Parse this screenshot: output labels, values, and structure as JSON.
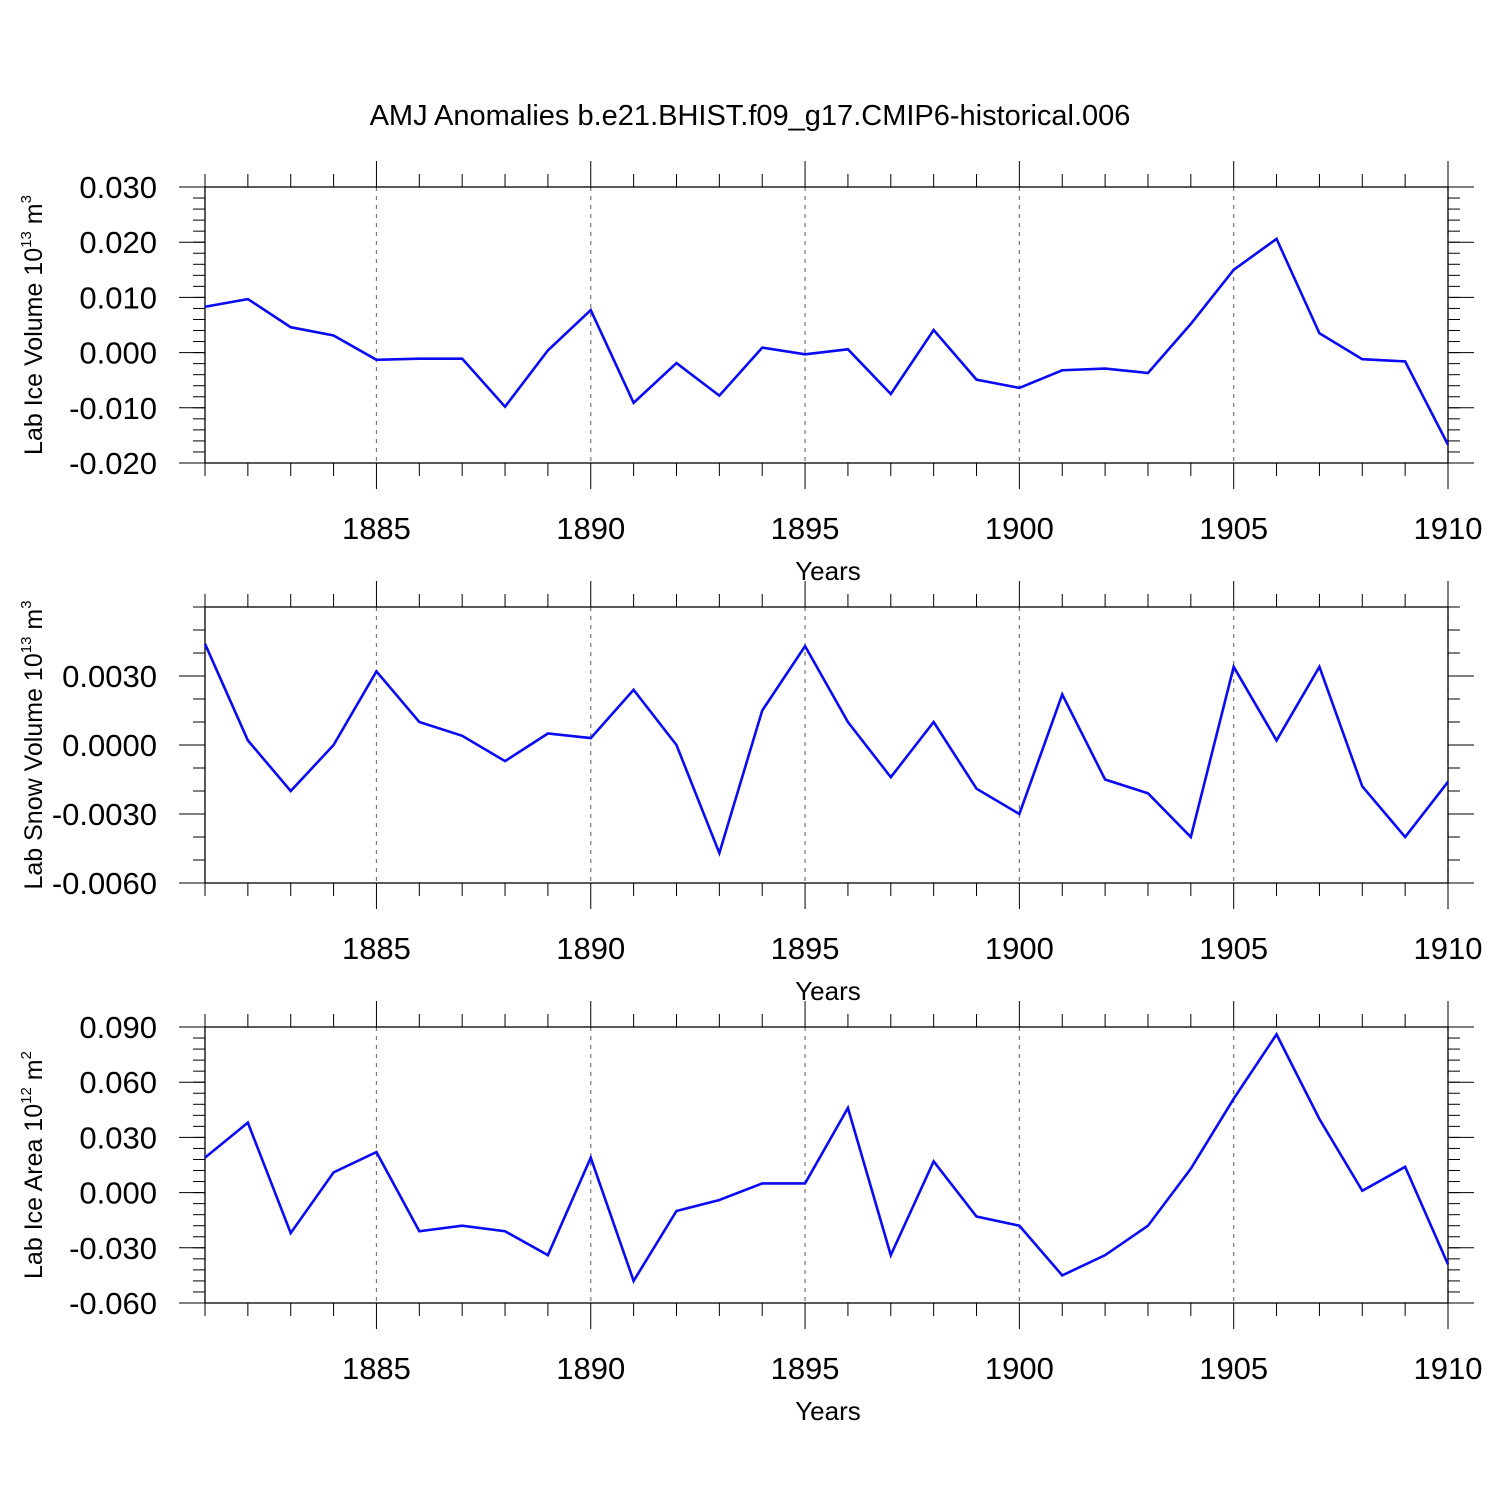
{
  "title": "AMJ Anomalies b.e21.BHIST.f09_g17.CMIP6-historical.006",
  "colors": {
    "line": "#0a0af5",
    "grid": "#777777"
  },
  "chart_data": [
    {
      "type": "line",
      "ylabel": {
        "text": "Lab Ice Volume 10",
        "exp": "13",
        "unit": " m",
        "unit_exp": "3"
      },
      "xlabel": "Years",
      "xlim": [
        1881,
        1910
      ],
      "ylim": [
        -0.02,
        0.03
      ],
      "xticks": [
        "1885",
        "1890",
        "1895",
        "1900",
        "1905",
        "1910"
      ],
      "yticks": [
        {
          "v": 0.03,
          "label": "0.030"
        },
        {
          "v": 0.02,
          "label": "0.020"
        },
        {
          "v": 0.01,
          "label": "0.010"
        },
        {
          "v": 0.0,
          "label": "0.000"
        },
        {
          "v": -0.01,
          "label": "-0.010"
        },
        {
          "v": -0.02,
          "label": "-0.020"
        }
      ],
      "y_minor_step": 0.002,
      "x": [
        1881,
        1882,
        1883,
        1884,
        1885,
        1886,
        1887,
        1888,
        1889,
        1890,
        1891,
        1892,
        1893,
        1894,
        1895,
        1896,
        1897,
        1898,
        1899,
        1900,
        1901,
        1902,
        1903,
        1904,
        1905,
        1906,
        1907,
        1908,
        1909,
        1910
      ],
      "series": [
        {
          "name": "Lab Ice Volume",
          "values": [
            0.0083,
            0.0097,
            0.0046,
            0.0031,
            -0.0013,
            -0.0011,
            -0.0011,
            -0.0098,
            0.0004,
            0.0077,
            -0.0091,
            -0.0019,
            -0.0078,
            0.0009,
            -0.0003,
            0.0006,
            -0.0075,
            0.0041,
            -0.0049,
            -0.0064,
            -0.0032,
            -0.0029,
            -0.0037,
            0.0052,
            0.015,
            0.0206,
            0.0035,
            -0.0012,
            -0.0016,
            -0.0167
          ]
        }
      ]
    },
    {
      "type": "line",
      "ylabel": {
        "text": "Lab Snow Volume 10",
        "exp": "13",
        "unit": " m",
        "unit_exp": "3"
      },
      "xlabel": "Years",
      "xlim": [
        1881,
        1910
      ],
      "ylim": [
        -0.006,
        0.006
      ],
      "xticks": [
        "1885",
        "1890",
        "1895",
        "1900",
        "1905",
        "1910"
      ],
      "yticks": [
        {
          "v": 0.003,
          "label": "0.0030"
        },
        {
          "v": 0.0,
          "label": "0.0000"
        },
        {
          "v": -0.003,
          "label": "-0.0030"
        },
        {
          "v": -0.006,
          "label": "-0.0060"
        }
      ],
      "y_minor_step": 0.001,
      "x": [
        1881,
        1882,
        1883,
        1884,
        1885,
        1886,
        1887,
        1888,
        1889,
        1890,
        1891,
        1892,
        1893,
        1894,
        1895,
        1896,
        1897,
        1898,
        1899,
        1900,
        1901,
        1902,
        1903,
        1904,
        1905,
        1906,
        1907,
        1908,
        1909,
        1910
      ],
      "series": [
        {
          "name": "Lab Snow Volume",
          "values": [
            0.0044,
            0.0002,
            -0.002,
            0.0,
            0.0032,
            0.001,
            0.0004,
            -0.0007,
            0.0005,
            0.0003,
            0.0024,
            0.0,
            -0.0047,
            0.0015,
            0.0043,
            0.001,
            -0.0014,
            0.001,
            -0.0019,
            -0.003,
            0.0022,
            -0.0015,
            -0.0021,
            -0.004,
            0.0034,
            0.0002,
            0.0034,
            -0.0018,
            -0.004,
            -0.0016
          ]
        }
      ]
    },
    {
      "type": "line",
      "ylabel": {
        "text": "Lab Ice Area 10",
        "exp": "12",
        "unit": " m",
        "unit_exp": "2"
      },
      "xlabel": "Years",
      "xlim": [
        1881,
        1910
      ],
      "ylim": [
        -0.06,
        0.09
      ],
      "xticks": [
        "1885",
        "1890",
        "1895",
        "1900",
        "1905",
        "1910"
      ],
      "yticks": [
        {
          "v": 0.09,
          "label": "0.090"
        },
        {
          "v": 0.06,
          "label": "0.060"
        },
        {
          "v": 0.03,
          "label": "0.030"
        },
        {
          "v": 0.0,
          "label": "0.000"
        },
        {
          "v": -0.03,
          "label": "-0.030"
        },
        {
          "v": -0.06,
          "label": "-0.060"
        }
      ],
      "y_minor_step": 0.006,
      "x": [
        1881,
        1882,
        1883,
        1884,
        1885,
        1886,
        1887,
        1888,
        1889,
        1890,
        1891,
        1892,
        1893,
        1894,
        1895,
        1896,
        1897,
        1898,
        1899,
        1900,
        1901,
        1902,
        1903,
        1904,
        1905,
        1906,
        1907,
        1908,
        1909,
        1910
      ],
      "series": [
        {
          "name": "Lab Ice Area",
          "values": [
            0.019,
            0.038,
            -0.022,
            0.011,
            0.022,
            -0.021,
            -0.018,
            -0.021,
            -0.034,
            0.019,
            -0.048,
            -0.01,
            -0.004,
            0.005,
            0.005,
            0.046,
            -0.034,
            0.017,
            -0.013,
            -0.018,
            -0.045,
            -0.034,
            -0.018,
            0.013,
            0.051,
            0.086,
            0.04,
            0.001,
            0.014,
            -0.039
          ]
        }
      ]
    }
  ]
}
